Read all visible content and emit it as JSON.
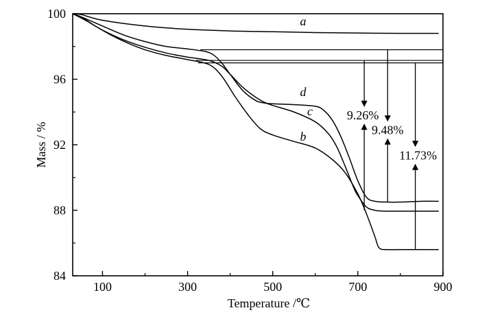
{
  "chart_data": {
    "type": "line",
    "xlabel": "Temperature /℃",
    "ylabel": "Mass / %",
    "xlim": [
      30,
      900
    ],
    "ylim": [
      84,
      100
    ],
    "xticks": [
      100,
      300,
      500,
      700,
      900
    ],
    "yticks": [
      84,
      88,
      92,
      96,
      100
    ],
    "grid": false,
    "series": [
      {
        "name": "a",
        "x": [
          30,
          50,
          100,
          200,
          300,
          400,
          500,
          600,
          700,
          800,
          890
        ],
        "y": [
          100,
          99.95,
          99.6,
          99.25,
          99.05,
          98.95,
          98.9,
          98.85,
          98.82,
          98.8,
          98.8
        ]
      },
      {
        "name": "b",
        "x": [
          30,
          50,
          80,
          120,
          160,
          200,
          250,
          300,
          350,
          380,
          410,
          440,
          470,
          500,
          550,
          600,
          640,
          670,
          700,
          720,
          740,
          750,
          770,
          800,
          850,
          890
        ],
        "y": [
          100,
          99.8,
          99.3,
          98.7,
          98.2,
          97.8,
          97.45,
          97.2,
          96.9,
          96.2,
          95.0,
          93.9,
          93.0,
          92.6,
          92.2,
          91.8,
          91.1,
          90.3,
          89.0,
          87.8,
          86.4,
          85.7,
          85.6,
          85.6,
          85.6,
          85.6
        ]
      },
      {
        "name": "c",
        "x": [
          30,
          60,
          100,
          150,
          200,
          250,
          300,
          350,
          380,
          400,
          430,
          460,
          480,
          500,
          550,
          600,
          630,
          650,
          670,
          690,
          700,
          720,
          740,
          760,
          800,
          850,
          890
        ],
        "y": [
          100,
          99.6,
          99.0,
          98.4,
          97.95,
          97.6,
          97.35,
          97.15,
          96.8,
          96.3,
          95.5,
          94.9,
          94.6,
          94.4,
          94.0,
          93.4,
          92.7,
          91.9,
          90.7,
          89.4,
          88.9,
          88.2,
          88.0,
          87.95,
          87.95,
          87.95,
          87.95
        ]
      },
      {
        "name": "d",
        "x": [
          30,
          60,
          100,
          150,
          200,
          250,
          300,
          340,
          360,
          380,
          400,
          430,
          460,
          480,
          500,
          550,
          600,
          620,
          640,
          660,
          680,
          700,
          720,
          740,
          770,
          800,
          850,
          890
        ],
        "y": [
          100,
          99.7,
          99.25,
          98.7,
          98.3,
          98.0,
          97.85,
          97.7,
          97.5,
          97.0,
          96.3,
          95.3,
          94.7,
          94.55,
          94.5,
          94.45,
          94.35,
          94.1,
          93.5,
          92.5,
          91.2,
          89.8,
          88.8,
          88.55,
          88.5,
          88.5,
          88.55,
          88.55
        ]
      }
    ],
    "annotations": [
      {
        "label": "9.26%",
        "temperature": 715,
        "from": 97.15,
        "to": 88.0
      },
      {
        "label": "9.48%",
        "temperature": 770,
        "from": 97.8,
        "to": 88.5
      },
      {
        "label": "11.73%",
        "temperature": 835,
        "from": 97.0,
        "to": 85.6
      }
    ]
  },
  "colors": {
    "line": "#000000",
    "background": "#ffffff"
  }
}
